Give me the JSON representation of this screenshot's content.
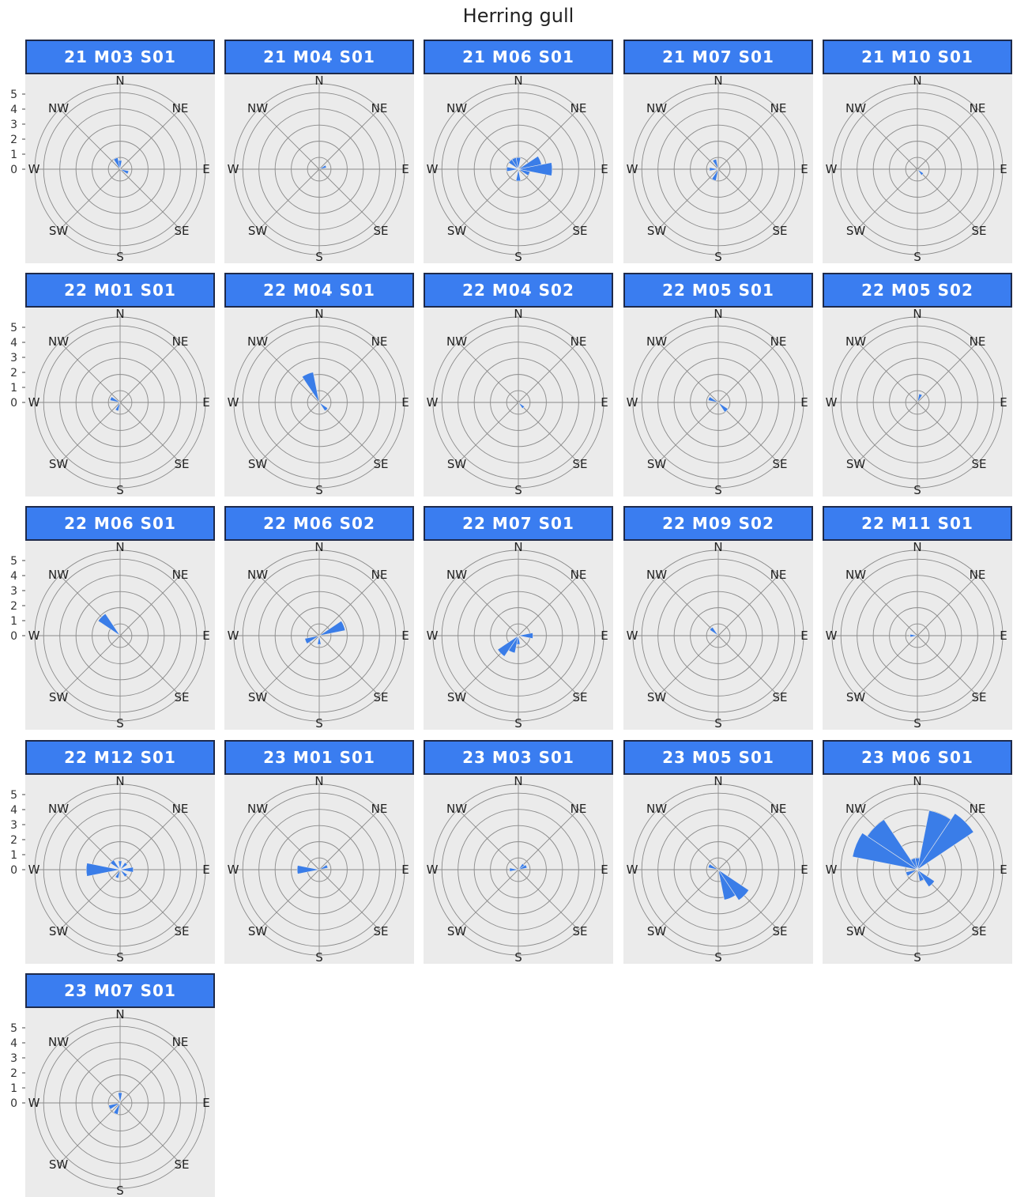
{
  "chart_data": {
    "type": "rose",
    "title": "Herring gull",
    "direction_labels": [
      "N",
      "NE",
      "E",
      "SE",
      "S",
      "SW",
      "W",
      "NW"
    ],
    "r_ticks": [
      0,
      1,
      2,
      3,
      4,
      5
    ],
    "r_max": 5.8,
    "sector_order": [
      "N",
      "NNE",
      "NE",
      "ENE",
      "E",
      "ESE",
      "SE",
      "SSE",
      "S",
      "SSW",
      "SW",
      "WSW",
      "W",
      "WNW",
      "NW",
      "NNW"
    ],
    "fill_color": "#3a7de8",
    "panels": [
      {
        "label": "21 M03 S01",
        "values": [
          0.6,
          0,
          0,
          0,
          0,
          0.6,
          0,
          0,
          0,
          0,
          0,
          0,
          0,
          0,
          0,
          0.8
        ]
      },
      {
        "label": "21 M04 S01",
        "values": [
          0,
          0,
          0,
          0.5,
          0,
          0,
          0,
          0,
          0,
          0,
          0,
          0,
          0,
          0,
          0,
          0
        ]
      },
      {
        "label": "21 M06 S01",
        "values": [
          0.8,
          0,
          0,
          1.6,
          2.3,
          0.8,
          0,
          0,
          0.8,
          0,
          0,
          0,
          0.8,
          0,
          0.8,
          0.8
        ]
      },
      {
        "label": "21 M07 S01",
        "values": [
          0,
          0,
          0,
          0,
          0,
          0,
          0,
          0,
          0,
          0.8,
          0,
          0,
          0.6,
          0,
          0,
          0.7
        ]
      },
      {
        "label": "21 M10 S01",
        "values": [
          0,
          0,
          0,
          0,
          0,
          0,
          0.5,
          0,
          0,
          0,
          0,
          0,
          0,
          0,
          0,
          0
        ]
      },
      {
        "label": "22 M01 S01",
        "values": [
          0,
          0,
          0,
          0,
          0,
          0,
          0,
          0,
          0,
          0.6,
          0,
          0,
          0,
          0.7,
          0,
          0
        ]
      },
      {
        "label": "22 M04 S01",
        "values": [
          0,
          0,
          0,
          0,
          0,
          0,
          0.7,
          0,
          0,
          0,
          0,
          0,
          0,
          0,
          0,
          2.1
        ]
      },
      {
        "label": "22 M04 S02",
        "values": [
          0,
          0,
          0,
          0,
          0,
          0,
          0.5,
          0,
          0,
          0,
          0,
          0,
          0,
          0,
          0,
          0
        ]
      },
      {
        "label": "22 M05 S01",
        "values": [
          0,
          0,
          0,
          0,
          0,
          0,
          0.8,
          0,
          0,
          0,
          0,
          0,
          0,
          0.7,
          0,
          0
        ]
      },
      {
        "label": "22 M05 S02",
        "values": [
          0,
          0.6,
          0,
          0,
          0,
          0,
          0,
          0,
          0,
          0,
          0,
          0,
          0,
          0,
          0,
          0
        ]
      },
      {
        "label": "22 M06 S01",
        "values": [
          0,
          0,
          0,
          0,
          0,
          0,
          0,
          0,
          0,
          0,
          0,
          0,
          0,
          0,
          1.8,
          0
        ]
      },
      {
        "label": "22 M06 S02",
        "values": [
          0,
          0,
          0,
          1.8,
          0,
          0,
          0,
          0,
          0.6,
          0,
          0,
          1.0,
          0,
          0,
          0,
          0
        ]
      },
      {
        "label": "22 M07 S01",
        "values": [
          0,
          0,
          0,
          0,
          1.0,
          0,
          0,
          0,
          0.6,
          1.2,
          1.7,
          0,
          0,
          0,
          0,
          0
        ]
      },
      {
        "label": "22 M09 S02",
        "values": [
          0,
          0,
          0,
          0,
          0,
          0,
          0,
          0,
          0,
          0,
          0,
          0,
          0,
          0,
          0.7,
          0
        ]
      },
      {
        "label": "22 M11 S01",
        "values": [
          0,
          0,
          0,
          0,
          0,
          0,
          0,
          0,
          0,
          0,
          0,
          0,
          0.5,
          0,
          0,
          0
        ]
      },
      {
        "label": "22 M12 S01",
        "values": [
          0.6,
          0,
          0.6,
          0,
          0.9,
          0,
          0.6,
          0,
          0,
          0.6,
          0,
          0,
          2.3,
          0,
          0.8,
          0
        ]
      },
      {
        "label": "23 M01 S01",
        "values": [
          0,
          0,
          0,
          0.6,
          0,
          0,
          0,
          0,
          0,
          0,
          0,
          0,
          1.5,
          0,
          0,
          0
        ]
      },
      {
        "label": "23 M03 S01",
        "values": [
          0,
          0,
          0.5,
          0.6,
          0,
          0,
          0,
          0,
          0,
          0,
          0,
          0,
          0.6,
          0,
          0,
          0
        ]
      },
      {
        "label": "23 M05 S01",
        "values": [
          0,
          0,
          0,
          0,
          0,
          0,
          2.5,
          2.1,
          0,
          0,
          0,
          0,
          0,
          0.7,
          0,
          0
        ]
      },
      {
        "label": "23 M06 S01",
        "values": [
          0.8,
          4.1,
          4.6,
          0,
          0,
          0,
          1.4,
          0.8,
          0,
          0,
          0,
          0.8,
          0,
          4.5,
          4.1,
          0.8
        ]
      },
      {
        "label": "23 M07 S01",
        "values": [
          0.7,
          0,
          0,
          0,
          0,
          0,
          0,
          0,
          0,
          0.8,
          0,
          0.8,
          0,
          0,
          0,
          0
        ]
      }
    ]
  }
}
